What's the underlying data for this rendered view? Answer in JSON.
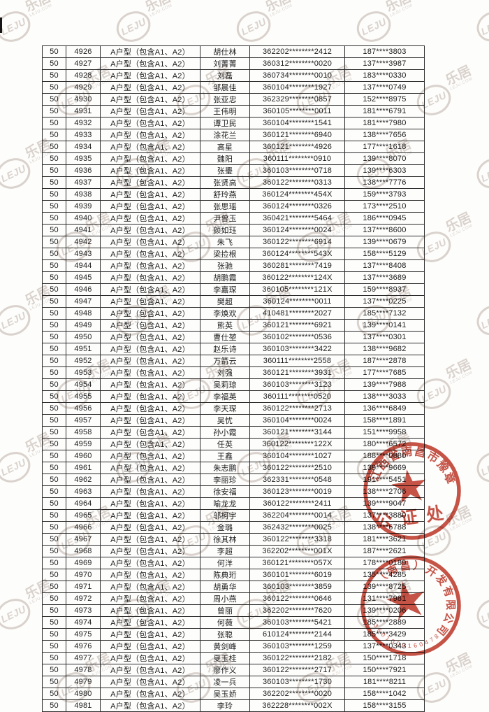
{
  "watermark": {
    "logo": "LEJU",
    "brand": "乐居",
    "sub": "LEJU.COM"
  },
  "table": {
    "rows": [
      [
        "50",
        "4926",
        "A户型（包含A1、A2）",
        "胡仕林",
        "362202********2412",
        "187****3803"
      ],
      [
        "50",
        "4927",
        "A户型（包含A1、A2）",
        "刘菁菁",
        "360312********0020",
        "137****3987"
      ],
      [
        "50",
        "4928",
        "A户型（包含A1、A2）",
        "刘磊",
        "360734********0010",
        "183****0330"
      ],
      [
        "50",
        "4929",
        "A户型（包含A1、A2）",
        "邹晨佳",
        "360104********1927",
        "137****0749"
      ],
      [
        "50",
        "4930",
        "A户型（包含A1、A2）",
        "张亚忠",
        "362329********0857",
        "152****8975"
      ],
      [
        "50",
        "4931",
        "A户型（包含A1、A2）",
        "王伟明",
        "360105********0011",
        "181****6791"
      ],
      [
        "50",
        "4932",
        "A户型（包含A1、A2）",
        "谭卫民",
        "360104********1541",
        "181****7980"
      ],
      [
        "50",
        "4933",
        "A户型（包含A1、A2）",
        "涂花兰",
        "360121********6940",
        "138****7656"
      ],
      [
        "50",
        "4934",
        "A户型（包含A1、A2）",
        "高星",
        "360121********4926",
        "177****1618"
      ],
      [
        "50",
        "4935",
        "A户型（包含A1、A2）",
        "魏阳",
        "360111********0910",
        "139****8070"
      ],
      [
        "50",
        "4936",
        "A户型（包含A1、A2）",
        "张璺",
        "360103********0718",
        "139****6303"
      ],
      [
        "50",
        "4937",
        "A户型（包含A1、A2）",
        "张贤高",
        "360122********0313",
        "138****7776"
      ],
      [
        "50",
        "4938",
        "A户型（包含A1、A2）",
        "舒玲燕",
        "360124********454X",
        "159****3793"
      ],
      [
        "50",
        "4939",
        "A户型（包含A1、A2）",
        "张思瑶",
        "360124********0326",
        "173****2510"
      ],
      [
        "50",
        "4940",
        "A户型（包含A1、A2）",
        "尹曾玉",
        "360421********5464",
        "186****0945"
      ],
      [
        "50",
        "4941",
        "A户型（包含A1、A2）",
        "颜如珏",
        "360124********0024",
        "137****8600"
      ],
      [
        "50",
        "4942",
        "A户型（包含A1、A2）",
        "朱飞",
        "360122********6914",
        "139****0679"
      ],
      [
        "50",
        "4943",
        "A户型（包含A1、A2）",
        "梁捡根",
        "360124********543X",
        "158****5129"
      ],
      [
        "50",
        "4944",
        "A户型（包含A1、A2）",
        "张驰",
        "360281********7419",
        "137****8408"
      ],
      [
        "50",
        "4945",
        "A户型（包含A1、A2）",
        "胡鹏霞",
        "360122********124X",
        "137****3689"
      ],
      [
        "50",
        "4946",
        "A户型（包含A1、A2）",
        "李嘉琛",
        "360105********121X",
        "159****8937"
      ],
      [
        "50",
        "4947",
        "A户型（包含A1、A2）",
        "樊超",
        "360124********0011",
        "137****0225"
      ],
      [
        "50",
        "4948",
        "A户型（包含A1、A2）",
        "李焕欢",
        "410481********2027",
        "185****7132"
      ],
      [
        "50",
        "4949",
        "A户型（包含A1、A2）",
        "熊英",
        "360121********6921",
        "139****0141"
      ],
      [
        "50",
        "4950",
        "A户型（包含A1、A2）",
        "曹仕堃",
        "360102********0536",
        "137****0301"
      ],
      [
        "50",
        "4951",
        "A户型（包含A1、A2）",
        "赵乐诗",
        "360103********3422",
        "138****9682"
      ],
      [
        "50",
        "4952",
        "A户型（包含A1、A2）",
        "万箭云",
        "360111********2558",
        "187****2878"
      ],
      [
        "50",
        "4953",
        "A户型（包含A1、A2）",
        "刘强",
        "360121********3931",
        "177****7685"
      ],
      [
        "50",
        "4954",
        "A户型（包含A1、A2）",
        "吴莉琼",
        "360103********3123",
        "139****7988"
      ],
      [
        "50",
        "4955",
        "A户型（包含A1、A2）",
        "李福英",
        "360111********0520",
        "138****3033"
      ],
      [
        "50",
        "4956",
        "A户型（包含A1、A2）",
        "李天琛",
        "360122********2713",
        "136****6849"
      ],
      [
        "50",
        "4957",
        "A户型（包含A1、A2）",
        "吴忧",
        "360104********0024",
        "158****1891"
      ],
      [
        "50",
        "4958",
        "A户型（包含A1、A2）",
        "孙小霞",
        "360121********3144",
        "151****9958"
      ],
      [
        "50",
        "4959",
        "A户型（包含A1、A2）",
        "任英",
        "360122********122X",
        "180****6572"
      ],
      [
        "50",
        "4960",
        "A户型（包含A1、A2）",
        "王鑫",
        "360104********1027",
        "188****0880"
      ],
      [
        "50",
        "4961",
        "A户型（包含A1、A2）",
        "朱志鹏",
        "360122********2510",
        "139****9669"
      ],
      [
        "50",
        "4962",
        "A户型（包含A1、A2）",
        "李丽珍",
        "362331********0548",
        "191****5451"
      ],
      [
        "50",
        "4963",
        "A户型（包含A1、A2）",
        "徐安福",
        "360123********0019",
        "138****2706"
      ],
      [
        "50",
        "4964",
        "A户型（包含A1、A2）",
        "喻龙龙",
        "360122********2411",
        "139****9047"
      ],
      [
        "50",
        "4965",
        "A户型（包含A1、A2）",
        "邬柯宇",
        "362204********0014",
        "137****3880"
      ],
      [
        "50",
        "4966",
        "A户型（包含A1、A2）",
        "金璐",
        "362432********0025",
        "138****6788"
      ],
      [
        "50",
        "4967",
        "A户型（包含A1、A2）",
        "徐其林",
        "360122********3318",
        "181****3621"
      ],
      [
        "50",
        "4968",
        "A户型（包含A1、A2）",
        "李超",
        "362202********001X",
        "187****2621"
      ],
      [
        "50",
        "4969",
        "A户型（包含A1、A2）",
        "何洋",
        "360121********057X",
        "178****0189"
      ],
      [
        "50",
        "4970",
        "A户型（包含A1、A2）",
        "陈典珩",
        "360101********6019",
        "135****4285"
      ],
      [
        "50",
        "4971",
        "A户型（包含A1、A2）",
        "胡勇华",
        "360103********3859",
        "139****8725"
      ],
      [
        "50",
        "4972",
        "A户型（包含A1、A2）",
        "周小燕",
        "360122********0646",
        "131****7981"
      ],
      [
        "50",
        "4973",
        "A户型（包含A1、A2）",
        "曾丽",
        "362202********7620",
        "139****0206"
      ],
      [
        "50",
        "4974",
        "A户型（包含A1、A2）",
        "何薇",
        "360103********5421",
        "185****2889"
      ],
      [
        "50",
        "4975",
        "A户型（包含A1、A2）",
        "张聪",
        "610124********2144",
        "185****3429"
      ],
      [
        "50",
        "4976",
        "A户型（包含A1、A2）",
        "黄剑峰",
        "360103********1259",
        "137****0343"
      ],
      [
        "50",
        "4977",
        "A户型（包含A1、A2）",
        "夏玉桂",
        "360122********2182",
        "150****1718"
      ],
      [
        "50",
        "4978",
        "A户型（包含A1、A2）",
        "廖作义",
        "360122********2717",
        "150****7921"
      ],
      [
        "50",
        "4979",
        "A户型（包含A1、A2）",
        "凌一兵",
        "360103********1730",
        "181****8211"
      ],
      [
        "50",
        "4980",
        "A户型（包含A1、A2）",
        "吴玉娇",
        "362202********0020",
        "158****1042"
      ],
      [
        "50",
        "4981",
        "A户型（包含A1、A2）",
        "李玲",
        "362228********002X",
        "158****3155"
      ]
    ]
  },
  "stamps": {
    "notary": {
      "arc_text": "江西省南昌市豫章",
      "label": "公证处",
      "color": "#bd3526"
    },
    "company": {
      "arc_text": "（南昌）开发有限公司",
      "serial": "3601000160478",
      "color": "#bd3526"
    }
  }
}
